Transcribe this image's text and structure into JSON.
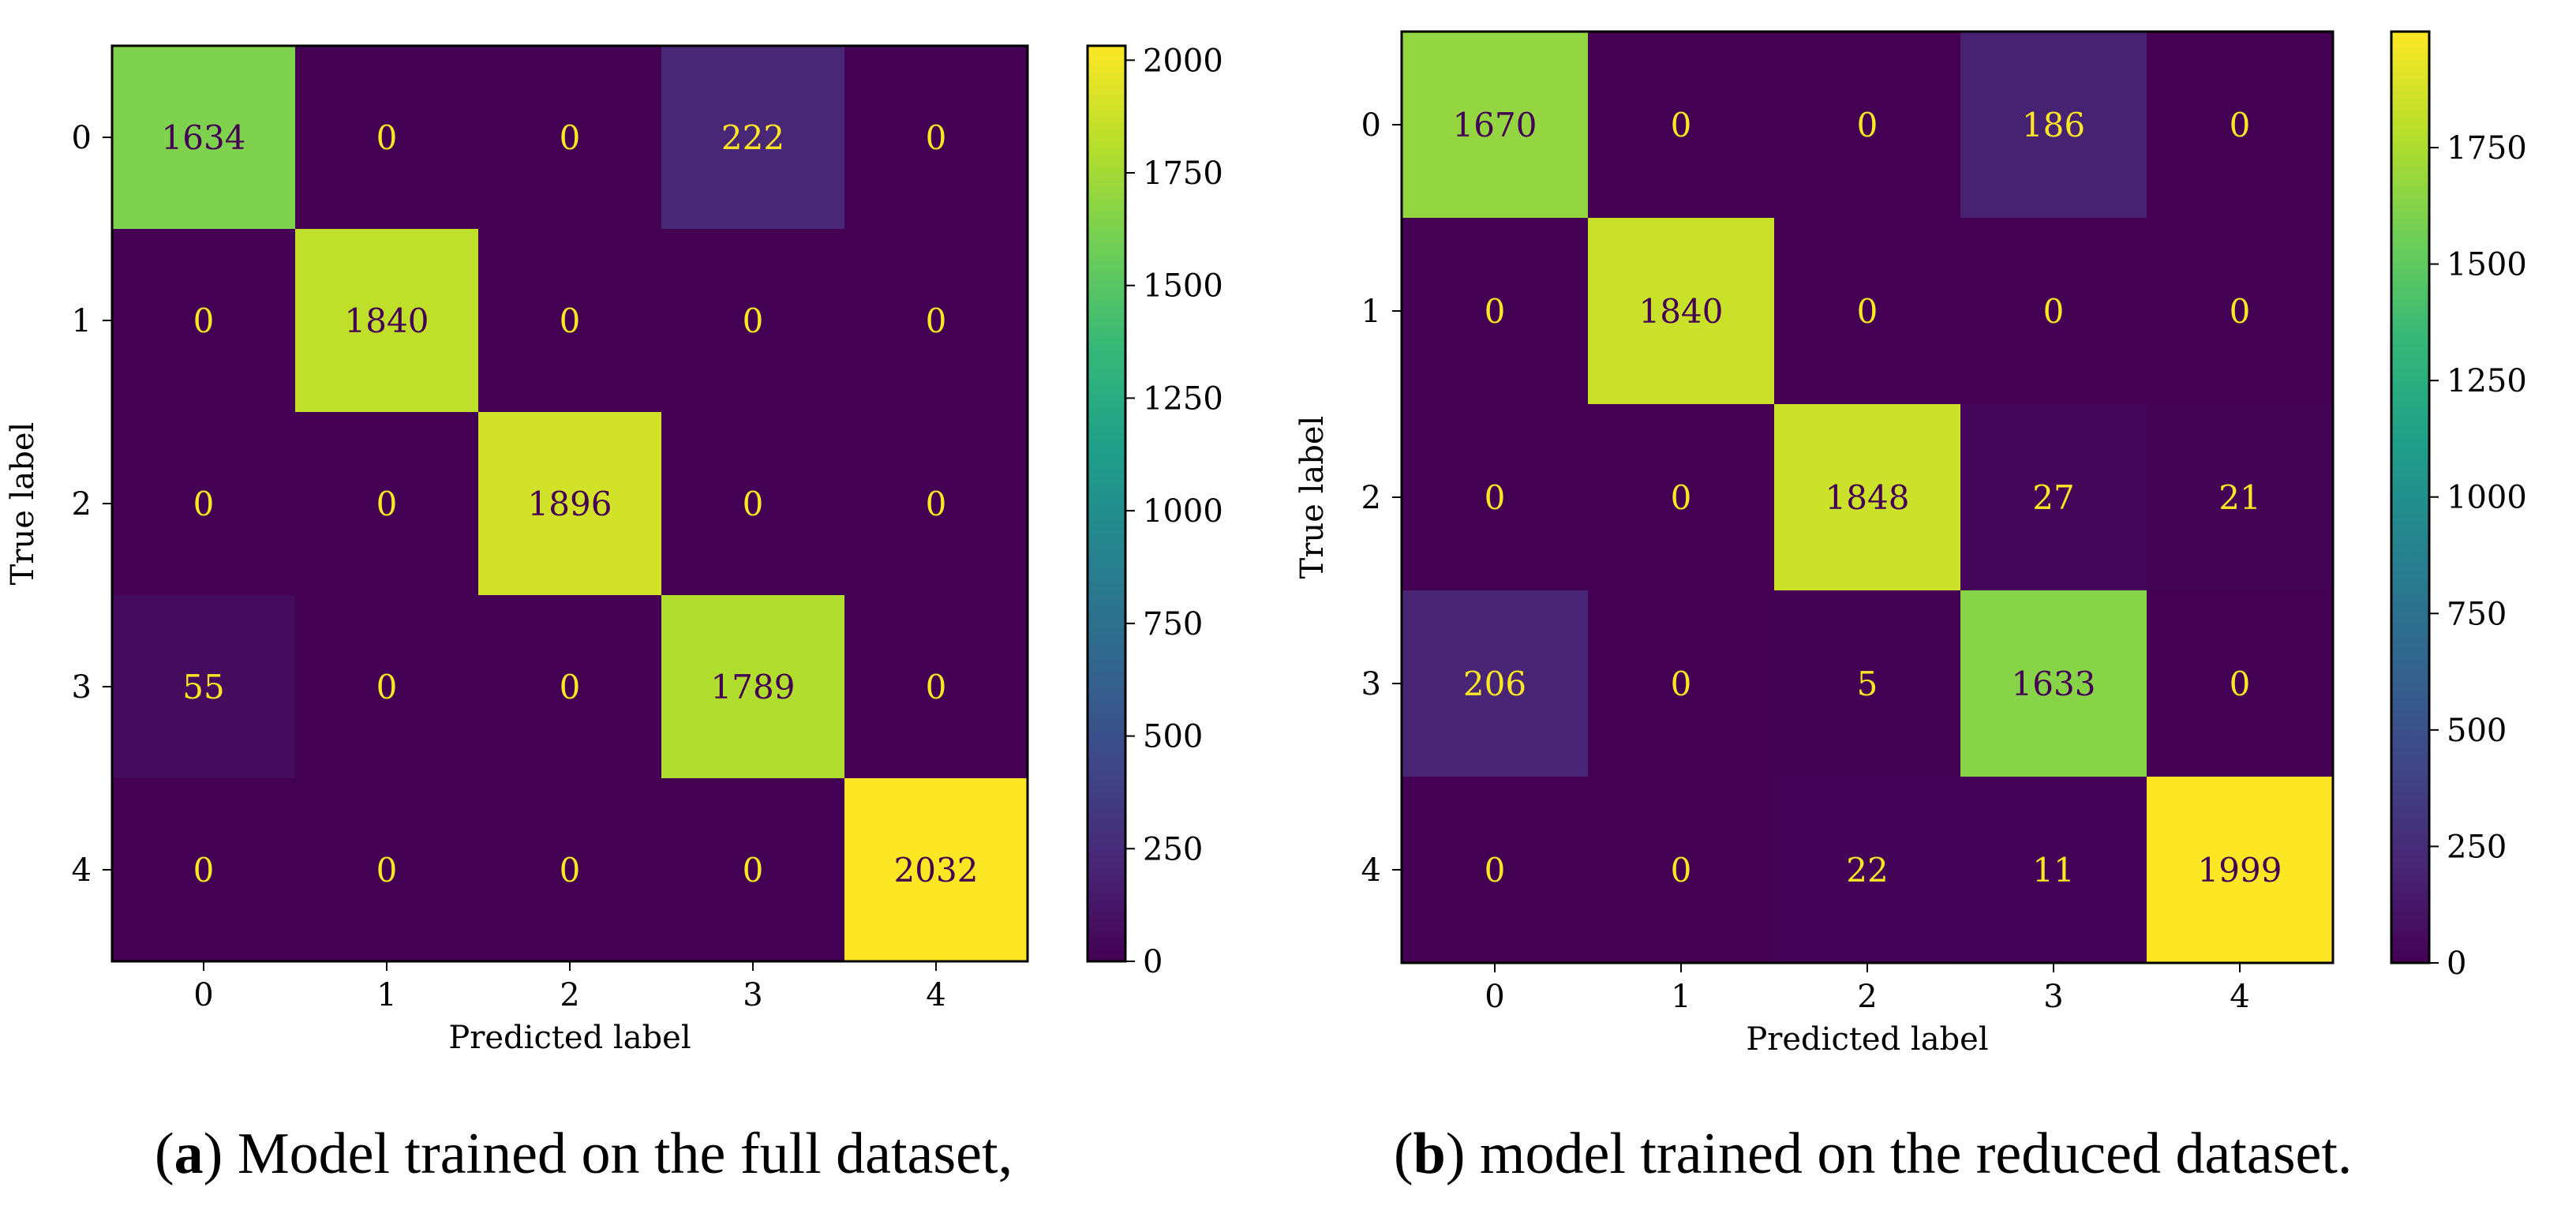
{
  "chart_data": [
    {
      "type": "heatmap",
      "name": "full",
      "xlabel": "Predicted label",
      "ylabel": "True label",
      "x_ticks": [
        "0",
        "1",
        "2",
        "3",
        "4"
      ],
      "y_ticks": [
        "0",
        "1",
        "2",
        "3",
        "4"
      ],
      "matrix": [
        [
          1634,
          0,
          0,
          222,
          0
        ],
        [
          0,
          1840,
          0,
          0,
          0
        ],
        [
          0,
          0,
          1896,
          0,
          0
        ],
        [
          55,
          0,
          0,
          1789,
          0
        ],
        [
          0,
          0,
          0,
          0,
          2032
        ]
      ],
      "vmin": 0,
      "vmax": 2032,
      "colorbar_ticks": [
        0,
        250,
        500,
        750,
        1000,
        1250,
        1500,
        1750,
        2000
      ],
      "colormap": "viridis",
      "caption_letter": "a",
      "caption_text": " Model trained on the full dataset,"
    },
    {
      "type": "heatmap",
      "name": "reduced",
      "xlabel": "Predicted label",
      "ylabel": "True label",
      "x_ticks": [
        "0",
        "1",
        "2",
        "3",
        "4"
      ],
      "y_ticks": [
        "0",
        "1",
        "2",
        "3",
        "4"
      ],
      "matrix": [
        [
          1670,
          0,
          0,
          186,
          0
        ],
        [
          0,
          1840,
          0,
          0,
          0
        ],
        [
          0,
          0,
          1848,
          27,
          21
        ],
        [
          206,
          0,
          5,
          1633,
          0
        ],
        [
          0,
          0,
          22,
          11,
          1999
        ]
      ],
      "vmin": 0,
      "vmax": 1999,
      "colorbar_ticks": [
        0,
        250,
        500,
        750,
        1000,
        1250,
        1500,
        1750
      ],
      "colormap": "viridis",
      "caption_letter": "b",
      "caption_text": " model trained on the reduced dataset."
    }
  ],
  "colors": {
    "text_on_dark": "#fde725",
    "text_on_light": "#440154",
    "border": "#000000"
  }
}
